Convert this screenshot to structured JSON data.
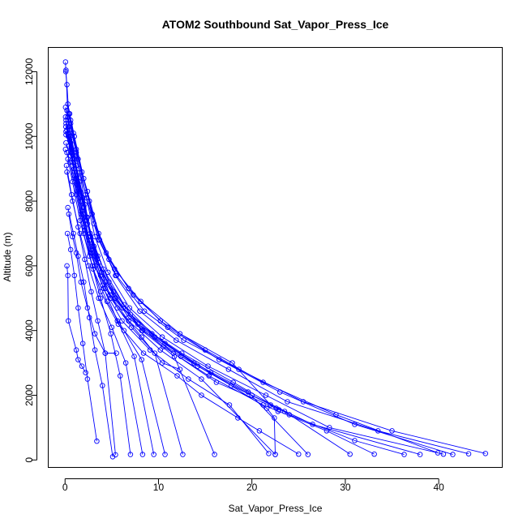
{
  "chart_data": {
    "type": "scatter",
    "title": "ATOM2 Southbound Sat_Vapor_Press_Ice",
    "xlabel": "Sat_Vapor_Press_Ice",
    "ylabel": "Altitude (m)",
    "xlim": [
      -1.8,
      46.8
    ],
    "ylim": [
      -230,
      12750
    ],
    "x_ticks": [
      0,
      10,
      20,
      30,
      40
    ],
    "y_ticks": [
      0,
      2000,
      4000,
      6000,
      8000,
      10000,
      12000
    ],
    "grid": false,
    "colors": {
      "series": "#0000ff",
      "axes": "#000000"
    },
    "series": [
      {
        "values": [
          [
            0.05,
            12300
          ],
          [
            0.08,
            12000
          ],
          [
            0.2,
            11600
          ],
          [
            0.4,
            10700
          ],
          [
            0.6,
            10400
          ],
          [
            1.5,
            9000
          ],
          [
            2.4,
            7500
          ],
          [
            3.2,
            6300
          ],
          [
            4.8,
            5100
          ],
          [
            7.8,
            4200
          ],
          [
            12.5,
            3300
          ],
          [
            18.0,
            2400
          ],
          [
            24.0,
            1400
          ],
          [
            31.0,
            600
          ],
          [
            36.3,
            170
          ]
        ]
      },
      {
        "values": [
          [
            0.1,
            12050
          ],
          [
            0.3,
            10600
          ],
          [
            0.5,
            10200
          ],
          [
            1.2,
            9100
          ],
          [
            2.1,
            7900
          ],
          [
            2.9,
            6600
          ],
          [
            4.3,
            5500
          ],
          [
            6.8,
            4400
          ],
          [
            10.5,
            3500
          ],
          [
            15.4,
            2600
          ],
          [
            21.2,
            1700
          ],
          [
            28.0,
            900
          ],
          [
            33.1,
            180
          ]
        ]
      },
      {
        "values": [
          [
            0.05,
            10900
          ],
          [
            0.4,
            10300
          ],
          [
            1.0,
            9300
          ],
          [
            1.9,
            8100
          ],
          [
            2.7,
            6900
          ],
          [
            3.9,
            5800
          ],
          [
            6.2,
            4700
          ],
          [
            9.6,
            3800
          ],
          [
            14.2,
            2900
          ],
          [
            20.0,
            2000
          ],
          [
            26.5,
            1100
          ],
          [
            38.0,
            170
          ]
        ]
      },
      {
        "values": [
          [
            0.1,
            10500
          ],
          [
            0.5,
            10000
          ],
          [
            1.3,
            8800
          ],
          [
            2.3,
            7400
          ],
          [
            3.4,
            6200
          ],
          [
            5.3,
            5000
          ],
          [
            8.3,
            4000
          ],
          [
            12.4,
            3200
          ],
          [
            17.8,
            2300
          ],
          [
            23.5,
            1500
          ],
          [
            30.5,
            180
          ]
        ]
      },
      {
        "values": [
          [
            0.08,
            10300
          ],
          [
            0.6,
            9800
          ],
          [
            1.6,
            8300
          ],
          [
            2.7,
            7000
          ],
          [
            4.1,
            5900
          ],
          [
            6.3,
            4800
          ],
          [
            9.3,
            3900
          ],
          [
            13.8,
            3000
          ],
          [
            19.6,
            2100
          ],
          [
            26.0,
            170
          ]
        ]
      },
      {
        "values": [
          [
            0.05,
            10600
          ],
          [
            0.3,
            10100
          ],
          [
            1.0,
            9000
          ],
          [
            1.8,
            7700
          ],
          [
            2.8,
            6500
          ],
          [
            4.3,
            5300
          ],
          [
            6.8,
            4300
          ],
          [
            10.2,
            3400
          ],
          [
            14.6,
            2500
          ],
          [
            22.5,
            170
          ]
        ]
      },
      {
        "values": [
          [
            0.1,
            10050
          ],
          [
            0.7,
            9600
          ],
          [
            1.5,
            8600
          ],
          [
            2.4,
            7300
          ],
          [
            3.6,
            6100
          ],
          [
            5.4,
            5000
          ],
          [
            8.2,
            4000
          ],
          [
            11.7,
            3200
          ],
          [
            16.0,
            170
          ]
        ]
      },
      {
        "values": [
          [
            0.1,
            9800
          ],
          [
            0.6,
            9400
          ],
          [
            1.3,
            8500
          ],
          [
            2.1,
            7200
          ],
          [
            3.2,
            6000
          ],
          [
            4.9,
            5000
          ],
          [
            7.1,
            4100
          ],
          [
            9.6,
            3300
          ],
          [
            12.6,
            170
          ]
        ]
      },
      {
        "values": [
          [
            0.05,
            9600
          ],
          [
            0.5,
            9200
          ],
          [
            1.2,
            8200
          ],
          [
            2.0,
            7000
          ],
          [
            3.0,
            5900
          ],
          [
            4.5,
            4900
          ],
          [
            6.3,
            4000
          ],
          [
            8.2,
            3100
          ],
          [
            10.7,
            170
          ]
        ]
      },
      {
        "values": [
          [
            0.1,
            10400
          ],
          [
            0.5,
            9900
          ],
          [
            1.1,
            8700
          ],
          [
            1.9,
            7600
          ],
          [
            2.8,
            6400
          ],
          [
            4.0,
            5400
          ],
          [
            5.6,
            4300
          ],
          [
            7.4,
            3200
          ],
          [
            9.5,
            170
          ]
        ]
      },
      {
        "values": [
          [
            0.2,
            8900
          ],
          [
            0.8,
            8000
          ],
          [
            1.6,
            7000
          ],
          [
            2.5,
            6000
          ],
          [
            3.6,
            5000
          ],
          [
            5.0,
            4100
          ],
          [
            6.5,
            3000
          ],
          [
            8.3,
            170
          ]
        ]
      },
      {
        "values": [
          [
            0.1,
            10150
          ],
          [
            0.6,
            9500
          ],
          [
            1.3,
            8300
          ],
          [
            2.1,
            7100
          ],
          [
            2.9,
            6000
          ],
          [
            3.8,
            5000
          ],
          [
            4.9,
            3900
          ],
          [
            5.9,
            2600
          ],
          [
            7.0,
            170
          ]
        ]
      },
      {
        "values": [
          [
            0.15,
            9100
          ],
          [
            0.7,
            8200
          ],
          [
            1.4,
            7200
          ],
          [
            2.1,
            6200
          ],
          [
            2.8,
            5200
          ],
          [
            3.5,
            4300
          ],
          [
            4.3,
            3300
          ],
          [
            5.4,
            160
          ]
        ]
      },
      {
        "values": [
          [
            0.3,
            7800
          ],
          [
            0.9,
            7000
          ],
          [
            1.4,
            6300
          ],
          [
            2.0,
            5500
          ],
          [
            2.6,
            4400
          ],
          [
            3.2,
            3400
          ],
          [
            4.0,
            2300
          ],
          [
            5.1,
            100
          ]
        ]
      },
      {
        "values": [
          [
            0.25,
            7000
          ],
          [
            0.6,
            6500
          ],
          [
            1.0,
            5700
          ],
          [
            1.4,
            4700
          ],
          [
            1.9,
            3600
          ],
          [
            2.4,
            2500
          ],
          [
            3.4,
            580
          ]
        ]
      },
      {
        "values": [
          [
            0.2,
            6000
          ],
          [
            0.3,
            5700
          ],
          [
            0.35,
            4300
          ],
          [
            1.2,
            3400
          ],
          [
            1.4,
            3100
          ],
          [
            1.8,
            2900
          ],
          [
            2.2,
            2700
          ]
        ]
      },
      {
        "values": [
          [
            0.4,
            7600
          ],
          [
            0.8,
            6900
          ],
          [
            1.2,
            6400
          ],
          [
            1.7,
            5500
          ],
          [
            2.4,
            4700
          ],
          [
            3.2,
            3900
          ],
          [
            4.3,
            3300
          ],
          [
            5.5,
            3300
          ]
        ]
      },
      {
        "values": [
          [
            0.5,
            10700
          ],
          [
            1.2,
            9600
          ],
          [
            2.2,
            8200
          ],
          [
            3.2,
            6900
          ],
          [
            4.6,
            5800
          ],
          [
            6.9,
            4700
          ],
          [
            10.4,
            3800
          ],
          [
            15.3,
            2900
          ],
          [
            21.5,
            2000
          ],
          [
            28.3,
            1000
          ],
          [
            40.5,
            180
          ]
        ]
      },
      {
        "values": [
          [
            0.3,
            11000
          ],
          [
            1.0,
            10000
          ],
          [
            2.0,
            8700
          ],
          [
            3.1,
            7300
          ],
          [
            4.7,
            6200
          ],
          [
            7.3,
            5100
          ],
          [
            11.0,
            4100
          ],
          [
            16.5,
            3100
          ],
          [
            23.0,
            2100
          ],
          [
            31.0,
            1100
          ],
          [
            41.5,
            170
          ]
        ]
      },
      {
        "values": [
          [
            0.6,
            10500
          ],
          [
            1.4,
            9300
          ],
          [
            2.6,
            8000
          ],
          [
            3.7,
            6800
          ],
          [
            5.4,
            5700
          ],
          [
            8.0,
            4600
          ],
          [
            11.9,
            3700
          ],
          [
            17.5,
            2800
          ],
          [
            23.8,
            1800
          ],
          [
            33.5,
            900
          ],
          [
            43.2,
            190
          ]
        ]
      },
      {
        "values": [
          [
            0.2,
            10800
          ],
          [
            0.9,
            10100
          ],
          [
            1.8,
            8900
          ],
          [
            2.9,
            7600
          ],
          [
            4.4,
            6400
          ],
          [
            6.8,
            5300
          ],
          [
            10.2,
            4300
          ],
          [
            15.0,
            3400
          ],
          [
            21.2,
            2400
          ],
          [
            29.0,
            1400
          ],
          [
            39.9,
            220
          ]
        ]
      },
      {
        "values": [
          [
            0.4,
            10300
          ],
          [
            1.1,
            9400
          ],
          [
            2.3,
            8100
          ],
          [
            3.6,
            6800
          ],
          [
            5.5,
            5700
          ],
          [
            8.5,
            4600
          ],
          [
            12.7,
            3700
          ],
          [
            18.6,
            2800
          ],
          [
            25.5,
            1800
          ],
          [
            35.0,
            900
          ],
          [
            45.0,
            200
          ]
        ]
      },
      {
        "values": [
          [
            0.3,
            10600
          ],
          [
            1.2,
            9500
          ],
          [
            2.4,
            8300
          ],
          [
            3.6,
            7000
          ],
          [
            5.3,
            5900
          ],
          [
            8.1,
            4900
          ],
          [
            12.3,
            3900
          ],
          [
            17.9,
            3000
          ],
          [
            22.0,
            1700
          ],
          [
            22.8,
            1500
          ]
        ]
      },
      {
        "values": [
          [
            0.35,
            10000
          ],
          [
            1.0,
            9000
          ],
          [
            2.0,
            7800
          ],
          [
            3.1,
            6600
          ],
          [
            4.7,
            5500
          ],
          [
            7.0,
            4500
          ],
          [
            10.7,
            3600
          ],
          [
            15.6,
            2700
          ],
          [
            21.6,
            1600
          ],
          [
            22.4,
            1300
          ],
          [
            22.5,
            170
          ]
        ]
      },
      {
        "values": [
          [
            0.2,
            9500
          ],
          [
            0.9,
            8800
          ],
          [
            1.7,
            7600
          ],
          [
            2.7,
            6400
          ],
          [
            4.1,
            5300
          ],
          [
            6.1,
            4300
          ],
          [
            9.1,
            3400
          ],
          [
            13.2,
            2500
          ],
          [
            17.6,
            1700
          ],
          [
            21.8,
            200
          ]
        ]
      },
      {
        "values": [
          [
            0.3,
            9300
          ],
          [
            0.8,
            8600
          ],
          [
            1.6,
            7400
          ],
          [
            2.6,
            6300
          ],
          [
            3.8,
            5200
          ],
          [
            5.7,
            4200
          ],
          [
            8.4,
            3300
          ],
          [
            12.0,
            2600
          ],
          [
            14.6,
            2000
          ],
          [
            18.5,
            1300
          ],
          [
            20.8,
            900
          ],
          [
            25.0,
            180
          ]
        ]
      },
      {
        "values": [
          [
            0.4,
            9700
          ],
          [
            1.2,
            8700
          ],
          [
            2.3,
            7500
          ],
          [
            3.5,
            6300
          ],
          [
            5.2,
            5200
          ],
          [
            7.8,
            4200
          ],
          [
            11.6,
            3300
          ],
          [
            16.2,
            2400
          ],
          [
            22.6,
            1600
          ],
          [
            22.9,
            1550
          ]
        ]
      },
      {
        "values": [
          [
            0.2,
            10200
          ],
          [
            0.8,
            9200
          ],
          [
            1.7,
            8000
          ],
          [
            2.6,
            6800
          ],
          [
            3.8,
            5700
          ],
          [
            5.6,
            4700
          ],
          [
            8.2,
            3800
          ],
          [
            10.4,
            3000
          ],
          [
            12.3,
            2800
          ]
        ]
      }
    ]
  }
}
